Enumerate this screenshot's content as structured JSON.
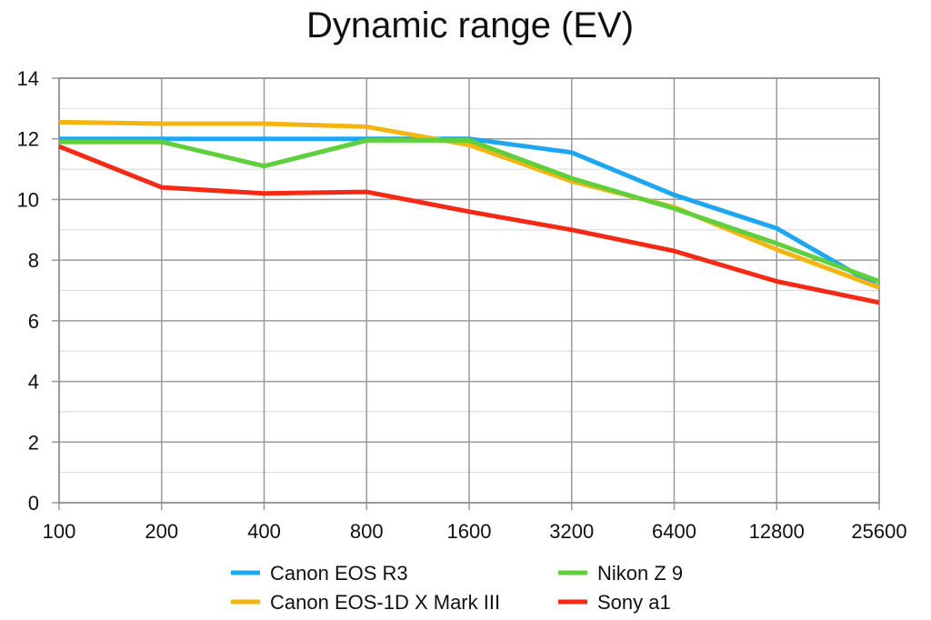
{
  "chart_data": {
    "type": "line",
    "title": "Dynamic range (EV)",
    "xlabel": "",
    "ylabel": "",
    "categories": [
      "100",
      "200",
      "400",
      "800",
      "1600",
      "3200",
      "6400",
      "12800",
      "25600"
    ],
    "ylim": [
      0,
      14
    ],
    "yticks": [
      0,
      2,
      4,
      6,
      8,
      10,
      12,
      14
    ],
    "grid": true,
    "legend_position": "bottom",
    "series": [
      {
        "name": "Canon EOS R3",
        "color": "#1ea7f0",
        "values": [
          12.0,
          12.0,
          12.0,
          12.0,
          12.0,
          11.55,
          10.15,
          9.05,
          7.1
        ]
      },
      {
        "name": "Canon EOS-1D X Mark III",
        "color": "#f4b512",
        "values": [
          12.55,
          12.5,
          12.5,
          12.4,
          11.8,
          10.6,
          9.75,
          8.35,
          7.1
        ]
      },
      {
        "name": "Nikon Z 9",
        "color": "#5fcf3c",
        "values": [
          11.9,
          11.9,
          11.1,
          11.95,
          11.95,
          10.7,
          9.7,
          8.55,
          7.3
        ]
      },
      {
        "name": "Sony a1",
        "color": "#f52a16",
        "values": [
          11.75,
          10.4,
          10.2,
          10.25,
          9.6,
          9.0,
          8.3,
          7.3,
          6.6
        ]
      }
    ]
  }
}
